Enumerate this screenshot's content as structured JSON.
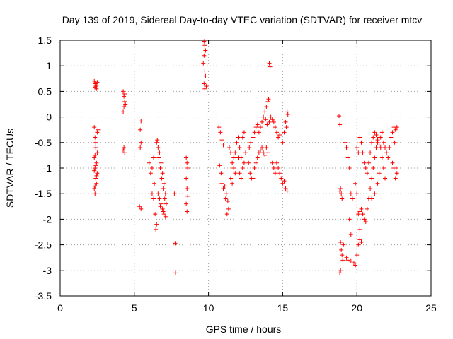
{
  "chart_data": {
    "type": "scatter",
    "title": "Day 139 of 2019, Sidereal Day-to-day VTEC variation (SDTVAR) for receiver mtcv",
    "xlabel": "GPS time / hours",
    "ylabel": "SDTVAR / TECUs",
    "xlim": [
      0,
      25
    ],
    "ylim": [
      -3.5,
      1.5
    ],
    "xticks": [
      0,
      5,
      10,
      15,
      20,
      25
    ],
    "yticks": [
      -3.5,
      -3,
      -2.5,
      -2,
      -1.5,
      -1,
      -0.5,
      0,
      0.5,
      1,
      1.5
    ],
    "xtick_labels": [
      "0",
      "5",
      "10",
      "15",
      "20",
      "25"
    ],
    "ytick_labels": [
      "-3.5",
      "-3",
      "-2.5",
      "-2",
      "-1.5",
      "-1",
      "-0.5",
      "0",
      "0.5",
      "1",
      "1.5"
    ],
    "grid": true,
    "marker": "+",
    "color": "#ff0000",
    "series": [
      {
        "name": "SDTVAR",
        "points": [
          [
            2.3,
            0.7
          ],
          [
            2.35,
            0.65
          ],
          [
            2.4,
            0.6
          ],
          [
            2.45,
            0.55
          ],
          [
            2.5,
            0.68
          ],
          [
            2.45,
            0.62
          ],
          [
            2.35,
            0.58
          ],
          [
            2.3,
            -0.2
          ],
          [
            2.35,
            -0.4
          ],
          [
            2.4,
            -0.6
          ],
          [
            2.3,
            -0.8
          ],
          [
            2.35,
            -1.0
          ],
          [
            2.4,
            -1.2
          ],
          [
            2.3,
            -1.4
          ],
          [
            2.35,
            -1.5
          ],
          [
            2.45,
            -1.3
          ],
          [
            2.5,
            -1.1
          ],
          [
            2.45,
            -0.9
          ],
          [
            2.5,
            -0.7
          ],
          [
            2.4,
            -0.5
          ],
          [
            2.5,
            -0.3
          ],
          [
            2.55,
            -0.25
          ],
          [
            2.35,
            -0.75
          ],
          [
            2.4,
            -0.95
          ],
          [
            2.45,
            -1.15
          ],
          [
            2.3,
            -1.05
          ],
          [
            2.35,
            -1.35
          ],
          [
            4.25,
            0.5
          ],
          [
            4.3,
            0.4
          ],
          [
            4.35,
            0.3
          ],
          [
            4.3,
            0.2
          ],
          [
            4.25,
            0.1
          ],
          [
            4.35,
            0.45
          ],
          [
            4.4,
            0.25
          ],
          [
            4.3,
            -0.6
          ],
          [
            4.35,
            -0.7
          ],
          [
            4.25,
            -0.65
          ],
          [
            5.45,
            -0.08
          ],
          [
            5.4,
            -0.25
          ],
          [
            5.45,
            -0.5
          ],
          [
            5.4,
            -0.6
          ],
          [
            5.35,
            -1.75
          ],
          [
            5.45,
            -1.8
          ],
          [
            6.0,
            -0.9
          ],
          [
            6.1,
            -1.1
          ],
          [
            6.2,
            -1.5
          ],
          [
            6.3,
            -1.6
          ],
          [
            6.4,
            -1.9
          ],
          [
            6.5,
            -2.1
          ],
          [
            6.45,
            -2.2
          ],
          [
            6.35,
            -1.3
          ],
          [
            6.2,
            -1.0
          ],
          [
            6.3,
            -0.8
          ],
          [
            6.5,
            -0.5
          ],
          [
            6.6,
            -0.6
          ],
          [
            6.7,
            -0.7
          ],
          [
            6.8,
            -0.9
          ],
          [
            6.9,
            -1.1
          ],
          [
            7.0,
            -1.3
          ],
          [
            7.1,
            -1.5
          ],
          [
            6.55,
            -0.45
          ],
          [
            6.65,
            -0.8
          ],
          [
            6.75,
            -1.0
          ],
          [
            6.85,
            -1.2
          ],
          [
            6.95,
            -1.4
          ],
          [
            7.05,
            -1.6
          ],
          [
            6.8,
            -1.7
          ],
          [
            6.9,
            -1.8
          ],
          [
            7.0,
            -1.9
          ],
          [
            7.1,
            -1.95
          ],
          [
            6.6,
            -1.5
          ],
          [
            6.7,
            -1.6
          ],
          [
            6.75,
            -1.75
          ],
          [
            6.95,
            -1.85
          ],
          [
            7.15,
            -1.7
          ],
          [
            7.7,
            -1.5
          ],
          [
            7.75,
            -2.47
          ],
          [
            7.78,
            -3.05
          ],
          [
            8.5,
            -0.8
          ],
          [
            8.55,
            -0.9
          ],
          [
            8.6,
            -1.0
          ],
          [
            8.5,
            -1.2
          ],
          [
            8.55,
            -1.4
          ],
          [
            8.6,
            -1.55
          ],
          [
            8.5,
            -1.7
          ],
          [
            8.55,
            -1.85
          ],
          [
            9.7,
            1.48
          ],
          [
            9.75,
            1.4
          ],
          [
            9.8,
            1.3
          ],
          [
            9.7,
            1.2
          ],
          [
            9.75,
            0.9
          ],
          [
            9.8,
            0.8
          ],
          [
            9.7,
            0.65
          ],
          [
            9.75,
            0.55
          ],
          [
            9.85,
            0.6
          ],
          [
            9.65,
            1.05
          ],
          [
            10.7,
            -0.2
          ],
          [
            10.8,
            -0.3
          ],
          [
            10.9,
            -0.45
          ],
          [
            11.0,
            -0.55
          ],
          [
            10.75,
            -0.95
          ],
          [
            10.85,
            -1.1
          ],
          [
            10.9,
            -1.3
          ],
          [
            11.0,
            -1.4
          ],
          [
            11.1,
            -1.35
          ],
          [
            11.2,
            -1.5
          ],
          [
            11.3,
            -1.65
          ],
          [
            11.35,
            -1.8
          ],
          [
            11.25,
            -1.9
          ],
          [
            11.15,
            -1.6
          ],
          [
            11.4,
            -0.6
          ],
          [
            11.5,
            -0.7
          ],
          [
            11.6,
            -0.9
          ],
          [
            11.7,
            -1.0
          ],
          [
            11.8,
            -1.1
          ],
          [
            11.5,
            -1.2
          ],
          [
            11.6,
            -1.3
          ],
          [
            11.9,
            -0.5
          ],
          [
            12.0,
            -0.4
          ],
          [
            12.1,
            -0.6
          ],
          [
            12.2,
            -0.8
          ],
          [
            12.3,
            -1.0
          ],
          [
            12.4,
            -0.9
          ],
          [
            12.5,
            -0.7
          ],
          [
            12.3,
            -0.4
          ],
          [
            12.4,
            -0.3
          ],
          [
            12.0,
            -0.8
          ],
          [
            12.1,
            -1.1
          ],
          [
            12.2,
            -1.2
          ],
          [
            11.7,
            -0.8
          ],
          [
            11.8,
            -0.7
          ],
          [
            12.7,
            -0.9
          ],
          [
            12.8,
            -1.1
          ],
          [
            12.9,
            -1.2
          ],
          [
            12.75,
            -0.6
          ],
          [
            12.85,
            -0.5
          ],
          [
            13.0,
            -0.4
          ],
          [
            13.1,
            -0.3
          ],
          [
            13.2,
            -0.2
          ],
          [
            13.3,
            -0.15
          ],
          [
            13.4,
            -0.3
          ],
          [
            13.5,
            -0.2
          ],
          [
            13.6,
            -0.1
          ],
          [
            13.7,
            0.0
          ],
          [
            13.8,
            0.1
          ],
          [
            13.9,
            0.2
          ],
          [
            14.0,
            0.3
          ],
          [
            14.05,
            0.35
          ],
          [
            13.85,
            -0.05
          ],
          [
            13.95,
            -0.15
          ],
          [
            14.1,
            -0.1
          ],
          [
            14.2,
            0.0
          ],
          [
            14.3,
            -0.05
          ],
          [
            14.4,
            -0.1
          ],
          [
            14.5,
            -0.2
          ],
          [
            14.6,
            -0.3
          ],
          [
            14.7,
            -0.4
          ],
          [
            14.8,
            -0.35
          ],
          [
            13.2,
            -0.9
          ],
          [
            13.3,
            -0.8
          ],
          [
            13.4,
            -0.7
          ],
          [
            13.5,
            -0.65
          ],
          [
            13.6,
            -0.6
          ],
          [
            13.7,
            -0.7
          ],
          [
            13.8,
            -0.75
          ],
          [
            13.9,
            -0.6
          ],
          [
            14.0,
            -0.7
          ],
          [
            13.1,
            -1.0
          ],
          [
            13.0,
            -1.2
          ],
          [
            14.1,
            1.05
          ],
          [
            14.15,
            0.98
          ],
          [
            14.3,
            -0.9
          ],
          [
            14.4,
            -1.0
          ],
          [
            14.5,
            -1.1
          ],
          [
            14.6,
            -0.9
          ],
          [
            14.7,
            -1.0
          ],
          [
            14.8,
            -1.1
          ],
          [
            14.9,
            -1.2
          ],
          [
            15.0,
            -1.3
          ],
          [
            15.1,
            -1.25
          ],
          [
            15.2,
            -1.4
          ],
          [
            15.3,
            -1.45
          ],
          [
            15.0,
            -0.5
          ],
          [
            15.1,
            -0.3
          ],
          [
            15.2,
            -0.1
          ],
          [
            15.3,
            0.1
          ],
          [
            15.35,
            0.05
          ],
          [
            15.25,
            -0.2
          ],
          [
            18.8,
            0.02
          ],
          [
            18.85,
            -0.15
          ],
          [
            18.9,
            -1.4
          ],
          [
            18.95,
            -1.5
          ],
          [
            19.0,
            -1.6
          ],
          [
            18.85,
            -1.45
          ],
          [
            18.9,
            -2.45
          ],
          [
            18.95,
            -2.6
          ],
          [
            19.0,
            -2.7
          ],
          [
            19.05,
            -2.8
          ],
          [
            18.9,
            -3.0
          ],
          [
            18.85,
            -3.05
          ],
          [
            19.1,
            -2.5
          ],
          [
            19.2,
            -0.5
          ],
          [
            19.3,
            -0.6
          ],
          [
            19.4,
            -0.8
          ],
          [
            19.5,
            -1.0
          ],
          [
            19.6,
            -1.5
          ],
          [
            19.7,
            -1.6
          ],
          [
            19.5,
            -2.0
          ],
          [
            19.6,
            -2.3
          ],
          [
            19.3,
            -2.75
          ],
          [
            19.4,
            -2.8
          ],
          [
            19.6,
            -2.82
          ],
          [
            19.8,
            -2.85
          ],
          [
            19.9,
            -2.9
          ],
          [
            20.0,
            -2.7
          ],
          [
            20.1,
            -2.5
          ],
          [
            20.2,
            -2.4
          ],
          [
            20.3,
            -2.45
          ],
          [
            20.2,
            -2.2
          ],
          [
            20.1,
            -1.9
          ],
          [
            20.2,
            -1.85
          ],
          [
            20.3,
            -1.8
          ],
          [
            20.4,
            -1.9
          ],
          [
            20.5,
            -2.0
          ],
          [
            20.6,
            -2.05
          ],
          [
            20.7,
            -1.8
          ],
          [
            20.8,
            -1.6
          ],
          [
            20.9,
            -1.4
          ],
          [
            21.0,
            -1.2
          ],
          [
            21.1,
            -1.0
          ],
          [
            21.2,
            -0.8
          ],
          [
            21.3,
            -0.6
          ],
          [
            21.4,
            -0.5
          ],
          [
            21.5,
            -0.4
          ],
          [
            21.6,
            -0.6
          ],
          [
            21.7,
            -0.8
          ],
          [
            21.8,
            -1.0
          ],
          [
            21.9,
            -1.2
          ],
          [
            20.2,
            -0.4
          ],
          [
            20.3,
            -0.5
          ],
          [
            20.4,
            -0.7
          ],
          [
            20.5,
            -0.9
          ],
          [
            20.6,
            -1.0
          ],
          [
            20.7,
            -1.1
          ],
          [
            20.8,
            -0.9
          ],
          [
            20.9,
            -0.7
          ],
          [
            21.0,
            -0.5
          ],
          [
            21.1,
            -0.4
          ],
          [
            21.2,
            -0.3
          ],
          [
            21.3,
            -0.35
          ],
          [
            21.4,
            -0.45
          ],
          [
            21.5,
            -0.55
          ],
          [
            21.6,
            -0.4
          ],
          [
            21.7,
            -0.3
          ],
          [
            21.8,
            -0.5
          ],
          [
            21.9,
            -0.6
          ],
          [
            22.0,
            -0.7
          ],
          [
            22.1,
            -0.8
          ],
          [
            22.2,
            -0.6
          ],
          [
            22.3,
            -0.4
          ],
          [
            22.4,
            -0.3
          ],
          [
            22.5,
            -0.2
          ],
          [
            22.6,
            -0.25
          ],
          [
            22.7,
            -0.2
          ],
          [
            22.55,
            -0.5
          ],
          [
            22.65,
            -1.0
          ],
          [
            22.7,
            -1.1
          ],
          [
            22.6,
            -1.2
          ],
          [
            22.5,
            -1.0
          ],
          [
            22.4,
            -0.9
          ],
          [
            20.0,
            -0.6
          ],
          [
            20.1,
            -0.7
          ],
          [
            19.9,
            -1.3
          ],
          [
            20.0,
            -1.5
          ],
          [
            21.0,
            -1.6
          ],
          [
            21.2,
            -1.5
          ],
          [
            21.4,
            -1.3
          ],
          [
            21.5,
            -1.1
          ]
        ]
      }
    ]
  }
}
